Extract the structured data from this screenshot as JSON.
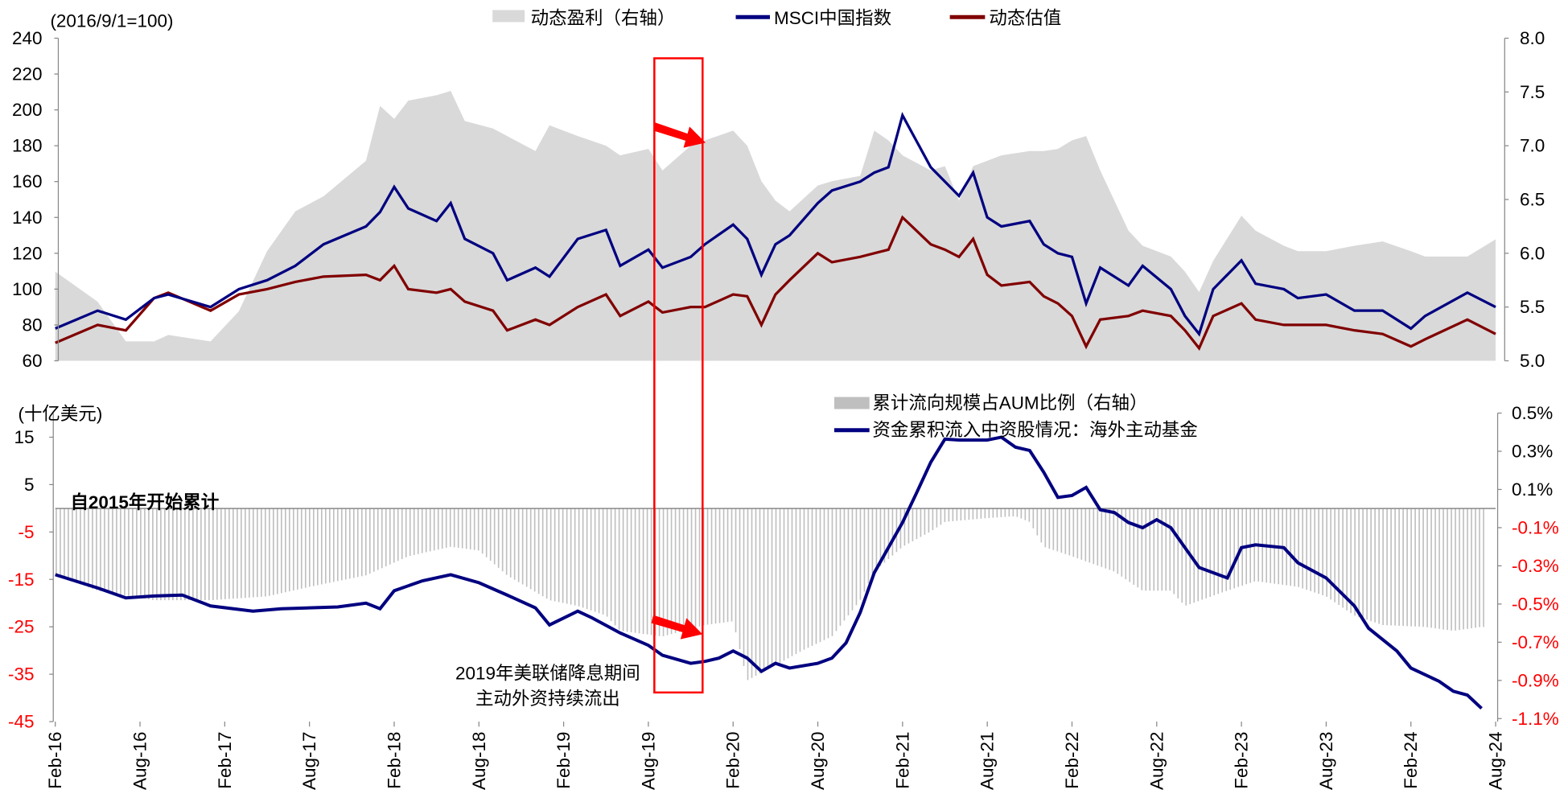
{
  "chart_data": [
    {
      "type": "line",
      "unit_label": "(2016/9/1=100)",
      "legend": [
        "动态盈利（右轴）",
        "MSCI中国指数",
        "动态估值"
      ],
      "legend_placement": "top-center",
      "yleft": {
        "range": [
          60,
          240
        ],
        "ticks": [
          "60",
          "80",
          "100",
          "120",
          "140",
          "160",
          "180",
          "200",
          "220",
          "240"
        ]
      },
      "yright": {
        "range": [
          5.0,
          8.0
        ],
        "ticks": [
          "5.0",
          "5.5",
          "6.0",
          "6.5",
          "7.0",
          "7.5",
          "8.0"
        ]
      },
      "colors": {
        "earnings": "#d9d9d9",
        "msci": "#000080",
        "valuation": "#800000"
      },
      "x": [
        "2016-02",
        "2016-05",
        "2016-07",
        "2016-09",
        "2016-10",
        "2017-01",
        "2017-03",
        "2017-05",
        "2017-07",
        "2017-09",
        "2017-12",
        "2018-01",
        "2018-02",
        "2018-03",
        "2018-05",
        "2018-06",
        "2018-07",
        "2018-09",
        "2018-10",
        "2018-12",
        "2019-01",
        "2019-03",
        "2019-05",
        "2019-06",
        "2019-08",
        "2019-09",
        "2019-11",
        "2019-12",
        "2020-02",
        "2020-03",
        "2020-04",
        "2020-05",
        "2020-06",
        "2020-08",
        "2020-09",
        "2020-11",
        "2020-12",
        "2021-01",
        "2021-02",
        "2021-04",
        "2021-05",
        "2021-06",
        "2021-07",
        "2021-08",
        "2021-09",
        "2021-11",
        "2021-12",
        "2022-01",
        "2022-02",
        "2022-03",
        "2022-04",
        "2022-06",
        "2022-07",
        "2022-09",
        "2022-10",
        "2022-11",
        "2022-12",
        "2023-02",
        "2023-03",
        "2023-05",
        "2023-06",
        "2023-08",
        "2023-10",
        "2023-12",
        "2024-02",
        "2024-03",
        "2024-06",
        "2024-08"
      ],
      "series": [
        {
          "name": "动态盈利（右轴）",
          "type": "area",
          "axis": "right",
          "values": [
            5.83,
            5.55,
            5.18,
            5.18,
            5.24,
            5.18,
            5.46,
            6.02,
            6.39,
            6.53,
            6.86,
            7.37,
            7.25,
            7.42,
            7.47,
            7.51,
            7.23,
            7.16,
            7.09,
            6.95,
            7.19,
            7.09,
            7.0,
            6.91,
            6.97,
            6.77,
            7.0,
            7.05,
            7.14,
            7.0,
            6.67,
            6.49,
            6.39,
            6.63,
            6.67,
            6.72,
            7.14,
            7.05,
            6.91,
            6.77,
            6.81,
            6.49,
            6.81,
            6.86,
            6.91,
            6.95,
            6.95,
            6.97,
            7.05,
            7.09,
            6.77,
            6.21,
            6.07,
            5.97,
            5.83,
            5.64,
            5.93,
            6.35,
            6.21,
            6.07,
            6.02,
            6.02,
            6.07,
            6.11,
            6.02,
            5.97,
            5.97,
            6.13
          ]
        },
        {
          "name": "MSCI中国指数",
          "type": "line",
          "axis": "left",
          "values": [
            78,
            88,
            83,
            95,
            97,
            90,
            100,
            105,
            113,
            125,
            135,
            143,
            157,
            145,
            138,
            148,
            128,
            120,
            105,
            112,
            107,
            128,
            133,
            113,
            122,
            112,
            118,
            125,
            136,
            128,
            108,
            125,
            130,
            148,
            155,
            160,
            165,
            168,
            197,
            168,
            160,
            152,
            165,
            140,
            135,
            138,
            125,
            120,
            118,
            92,
            112,
            102,
            113,
            100,
            85,
            75,
            100,
            116,
            103,
            100,
            95,
            97,
            88,
            88,
            78,
            85,
            98,
            90
          ]
        },
        {
          "name": "动态估值",
          "type": "line",
          "axis": "left",
          "values": [
            70,
            80,
            77,
            95,
            98,
            88,
            97,
            100,
            104,
            107,
            108,
            105,
            113,
            100,
            98,
            100,
            93,
            88,
            77,
            83,
            80,
            90,
            97,
            85,
            93,
            87,
            90,
            90,
            97,
            96,
            80,
            97,
            105,
            120,
            115,
            118,
            120,
            122,
            140,
            125,
            122,
            118,
            128,
            108,
            102,
            104,
            96,
            92,
            85,
            68,
            83,
            85,
            88,
            85,
            77,
            67,
            85,
            92,
            83,
            80,
            80,
            80,
            77,
            75,
            68,
            72,
            83,
            75
          ]
        }
      ],
      "xticks": [
        "Feb-16",
        "Aug-16",
        "Feb-17",
        "Aug-17",
        "Feb-18",
        "Aug-18",
        "Feb-19",
        "Aug-19",
        "Feb-20",
        "Aug-20",
        "Feb-21",
        "Aug-21",
        "Feb-22",
        "Aug-22",
        "Feb-23",
        "Aug-23",
        "Feb-24",
        "Aug-24"
      ]
    },
    {
      "type": "bar+line",
      "unit_label": "(十亿美元)",
      "legend": [
        "累计流向规模占AUM比例（右轴）",
        "资金累积流入中资股情况：海外主动基金"
      ],
      "legend_placement": "top-right",
      "annotation": "自2015年开始累计",
      "yleft": {
        "range": [
          -45,
          15
        ],
        "ticks": [
          "-45",
          "-35",
          "-25",
          "-15",
          "-5",
          "5",
          "15"
        ]
      },
      "yright": {
        "range": [
          -1.1,
          0.5
        ],
        "unit": "%",
        "ticks": [
          "-1.1%",
          "-0.9%",
          "-0.7%",
          "-0.5%",
          "-0.3%",
          "-0.1%",
          "0.1%",
          "0.3%",
          "0.5%"
        ]
      },
      "colors": {
        "bars": "#bfbfbf",
        "line": "#000080",
        "negative_ticks": "#ff0000"
      },
      "bars": {
        "name": "累计流向规模占AUM比例（右轴）",
        "axis": "right",
        "x": [
          "2016-02",
          "2016-05",
          "2016-09",
          "2017-01",
          "2017-05",
          "2017-08",
          "2017-12",
          "2018-03",
          "2018-06",
          "2018-08",
          "2018-10",
          "2019-01",
          "2019-03",
          "2019-05",
          "2019-06",
          "2019-09",
          "2019-12",
          "2020-02",
          "2020-03",
          "2020-05",
          "2020-07",
          "2020-09",
          "2020-11",
          "2020-12",
          "2021-02",
          "2021-04",
          "2021-05",
          "2021-08",
          "2021-10",
          "2021-11",
          "2021-12",
          "2022-02",
          "2022-05",
          "2022-07",
          "2022-09",
          "2022-10",
          "2023-01",
          "2023-03",
          "2023-06",
          "2023-08",
          "2023-10",
          "2023-12",
          "2024-03",
          "2024-05",
          "2024-07"
        ],
        "values": [
          -0.35,
          -0.43,
          -0.48,
          -0.48,
          -0.46,
          -0.41,
          -0.35,
          -0.25,
          -0.2,
          -0.22,
          -0.35,
          -0.48,
          -0.51,
          -0.56,
          -0.64,
          -0.67,
          -0.61,
          -0.59,
          -0.9,
          -0.82,
          -0.74,
          -0.67,
          -0.48,
          -0.33,
          -0.2,
          -0.12,
          -0.07,
          -0.05,
          -0.04,
          -0.07,
          -0.2,
          -0.25,
          -0.33,
          -0.43,
          -0.43,
          -0.51,
          -0.43,
          -0.38,
          -0.41,
          -0.46,
          -0.56,
          -0.61,
          -0.62,
          -0.64,
          -0.62
        ]
      },
      "line": {
        "name": "资金累积流入中资股情况：海外主动基金",
        "axis": "left",
        "x": [
          "2016-02",
          "2016-05",
          "2016-07",
          "2016-09",
          "2016-11",
          "2017-01",
          "2017-04",
          "2017-06",
          "2017-08",
          "2017-10",
          "2017-12",
          "2018-01",
          "2018-02",
          "2018-04",
          "2018-06",
          "2018-08",
          "2018-10",
          "2018-12",
          "2019-01",
          "2019-03",
          "2019-04",
          "2019-06",
          "2019-08",
          "2019-09",
          "2019-11",
          "2019-12",
          "2020-01",
          "2020-02",
          "2020-03",
          "2020-04",
          "2020-05",
          "2020-06",
          "2020-08",
          "2020-09",
          "2020-10",
          "2020-11",
          "2020-12",
          "2021-02",
          "2021-03",
          "2021-04",
          "2021-05",
          "2021-06",
          "2021-08",
          "2021-09",
          "2021-10",
          "2021-11",
          "2021-12",
          "2022-01",
          "2022-02",
          "2022-03",
          "2022-04",
          "2022-05",
          "2022-06",
          "2022-07",
          "2022-08",
          "2022-09",
          "2022-10",
          "2022-11",
          "2023-01",
          "2023-02",
          "2023-03",
          "2023-05",
          "2023-06",
          "2023-08",
          "2023-10",
          "2023-11",
          "2024-01",
          "2024-02",
          "2024-04",
          "2024-05",
          "2024-06",
          "2024-07"
        ],
        "values": [
          -14,
          -16.8,
          -18.9,
          -18.5,
          -18.3,
          -20.6,
          -21.7,
          -21.2,
          -21,
          -20.8,
          -20,
          -21.2,
          -17.4,
          -15.3,
          -14,
          -15.7,
          -18.3,
          -21,
          -24.6,
          -21.7,
          -23.1,
          -26.3,
          -28.9,
          -31,
          -32.7,
          -32.3,
          -31.6,
          -30.1,
          -31.6,
          -34.4,
          -32.7,
          -33.7,
          -32.7,
          -31.6,
          -28.4,
          -22,
          -13.6,
          -3,
          3.3,
          9.7,
          14.6,
          14.4,
          14.4,
          15,
          12.9,
          12.2,
          7.6,
          2.3,
          2.7,
          4.4,
          -0.3,
          -0.9,
          -3,
          -4.1,
          -2.4,
          -4.1,
          -8.3,
          -12.5,
          -14.7,
          -8.3,
          -7.7,
          -8.3,
          -11.5,
          -14.7,
          -20.6,
          -25.3,
          -30.1,
          -33.7,
          -36.5,
          -38.6,
          -39.4,
          -42.2
        ]
      },
      "highlight": {
        "period": [
          "2019-08",
          "2019-12"
        ],
        "color": "#ff0000",
        "text": [
          "2019年美联储降息期间",
          "主动外资持续流出"
        ]
      }
    }
  ]
}
